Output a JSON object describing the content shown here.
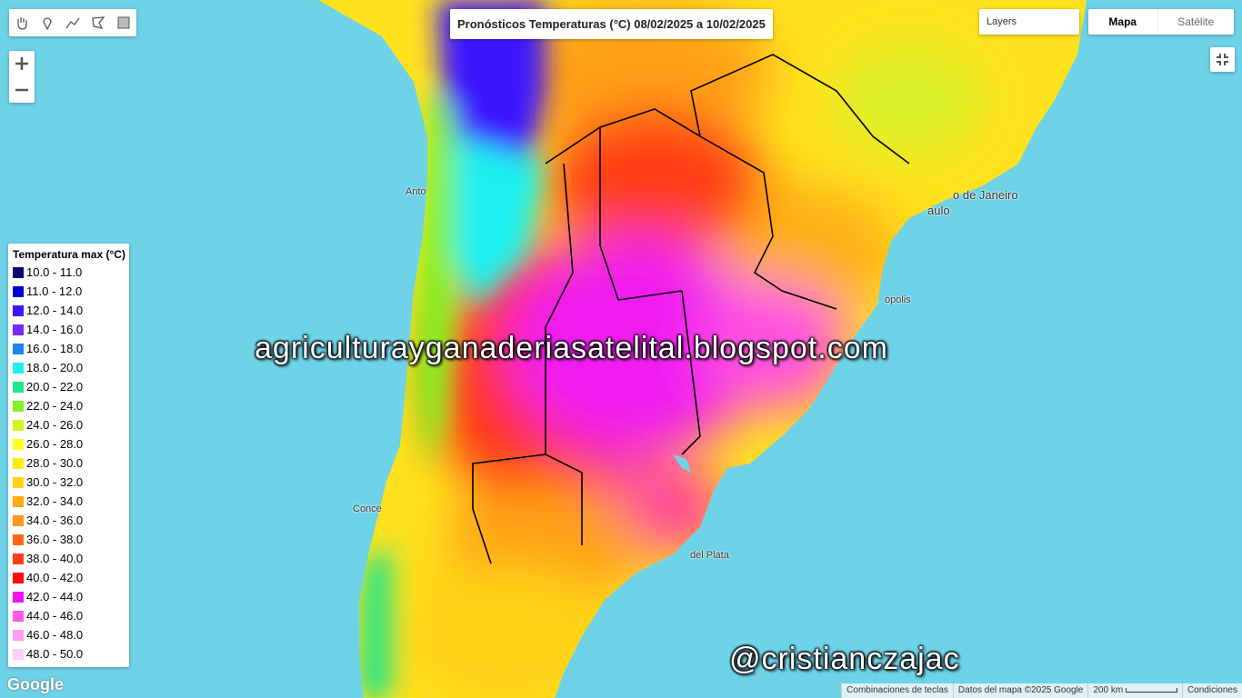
{
  "map": {
    "title": "Pronósticos Temperaturas (°C) 08/02/2025 a 10/02/2025",
    "layers_button": "Layers",
    "map_types": [
      "Mapa",
      "Satélite"
    ],
    "legend": {
      "title": "Temperatura max (°C)",
      "items": [
        {
          "label": "10.0 - 11.0",
          "color": "#0a0a6e"
        },
        {
          "label": "11.0 - 12.0",
          "color": "#0000d2"
        },
        {
          "label": "12.0 - 14.0",
          "color": "#3c14ff"
        },
        {
          "label": "14.0 - 16.0",
          "color": "#7828f5"
        },
        {
          "label": "16.0 - 18.0",
          "color": "#1e82f0"
        },
        {
          "label": "18.0 - 20.0",
          "color": "#1ef0f0"
        },
        {
          "label": "20.0 - 22.0",
          "color": "#1ee68c"
        },
        {
          "label": "22.0 - 24.0",
          "color": "#82f028"
        },
        {
          "label": "24.0 - 26.0",
          "color": "#d2f51e"
        },
        {
          "label": "26.0 - 28.0",
          "color": "#ffff1e"
        },
        {
          "label": "28.0 - 30.0",
          "color": "#ffeb14"
        },
        {
          "label": "30.0 - 32.0",
          "color": "#ffd214"
        },
        {
          "label": "32.0 - 34.0",
          "color": "#ffaa14"
        },
        {
          "label": "34.0 - 36.0",
          "color": "#ff961e"
        },
        {
          "label": "36.0 - 38.0",
          "color": "#ff6414"
        },
        {
          "label": "38.0 - 40.0",
          "color": "#ff3c14"
        },
        {
          "label": "40.0 - 42.0",
          "color": "#ff0a0a"
        },
        {
          "label": "42.0 - 44.0",
          "color": "#f014f0"
        },
        {
          "label": "44.0 - 46.0",
          "color": "#ff5ae6"
        },
        {
          "label": "46.0 - 48.0",
          "color": "#ff9bf0"
        },
        {
          "label": "48.0 - 50.0",
          "color": "#ffcdf5"
        }
      ]
    },
    "place_labels": [
      "Anto",
      "o de Janeiro",
      "aulo",
      "ópolis",
      "del Plata",
      "Conce"
    ],
    "watermarks": [
      "agriculturayganaderiasatelital.blogspot.com",
      "@cristianczajac"
    ],
    "footer": {
      "shortcuts": "Combinaciones de teclas",
      "map_data": "Datos del mapa ©2025 Google",
      "scale": "200 km",
      "terms": "Condiciones"
    },
    "logo": "Google"
  }
}
